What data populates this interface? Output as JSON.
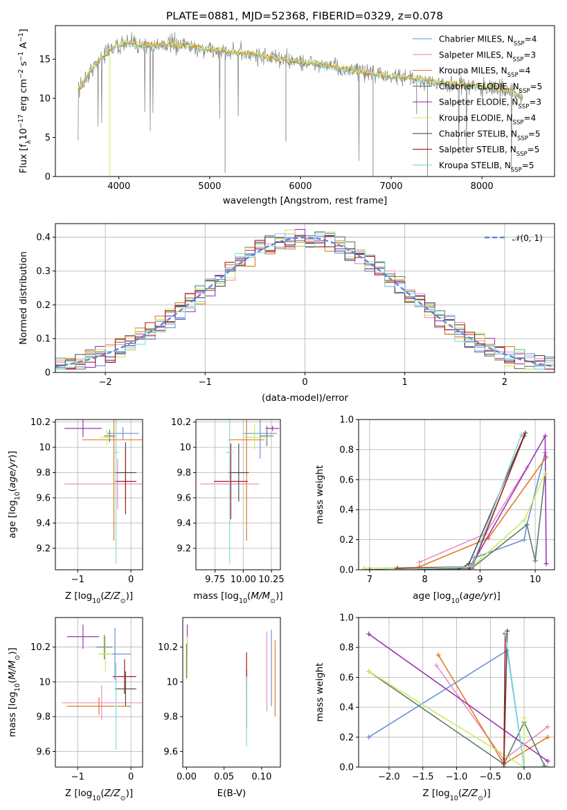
{
  "title": "PLATE=0881, MJD=52368, FIBERID=0329, z=0.078",
  "colors": [
    "#6a8fd8",
    "#e78fc4",
    "#e07a22",
    "#5a7f68",
    "#9b35b5",
    "#cfe860",
    "#4e4e4e",
    "#a51b1b",
    "#82dada"
  ],
  "chart_data": [
    {
      "type": "line",
      "name": "spectrum",
      "xlabel": "wavelength [Angstrom, rest frame]",
      "ylabel": "Flux [f_λ10^-17 erg cm^-2 s^-1 A^-1]",
      "xlim": [
        3300,
        8800
      ],
      "ylim": [
        0,
        19.3
      ],
      "xticks": [
        4000,
        5000,
        6000,
        7000,
        8000
      ],
      "yticks": [
        0,
        5,
        10,
        15
      ],
      "grid": false,
      "legend_position": "top-right",
      "legend": [
        {
          "name": "Chabrier MILES, N",
          "sub": "SSP",
          "tail": "=4"
        },
        {
          "name": "Salpeter MILES, N",
          "sub": "SSP",
          "tail": "=3"
        },
        {
          "name": "Kroupa MILES, N",
          "sub": "SSP",
          "tail": "=4"
        },
        {
          "name": "Chabrier ELODIE, N",
          "sub": "SSP",
          "tail": "=5"
        },
        {
          "name": "Salpeter ELODIE, N",
          "sub": "SSP",
          "tail": "=3"
        },
        {
          "name": "Kroupa ELODIE, N",
          "sub": "SSP",
          "tail": "=4"
        },
        {
          "name": "Chabrier STELIB, N",
          "sub": "SSP",
          "tail": "=5"
        },
        {
          "name": "Salpeter STELIB, N",
          "sub": "SSP",
          "tail": "=5"
        },
        {
          "name": "Kroupa STELIB, N",
          "sub": "SSP",
          "tail": "=5"
        }
      ],
      "continuum": [
        [
          3550,
          11.0
        ],
        [
          3650,
          12.8
        ],
        [
          3800,
          15.2
        ],
        [
          3950,
          16.6
        ],
        [
          4100,
          17.0
        ],
        [
          4300,
          16.7
        ],
        [
          4500,
          16.9
        ],
        [
          4700,
          16.8
        ],
        [
          4900,
          16.4
        ],
        [
          5100,
          16.1
        ],
        [
          5300,
          15.9
        ],
        [
          5500,
          15.5
        ],
        [
          5700,
          15.2
        ],
        [
          5900,
          14.8
        ],
        [
          6100,
          14.5
        ],
        [
          6300,
          14.1
        ],
        [
          6500,
          13.7
        ],
        [
          6700,
          13.3
        ],
        [
          6900,
          12.9
        ],
        [
          7100,
          12.7
        ],
        [
          7300,
          12.4
        ],
        [
          7500,
          12.1
        ],
        [
          7700,
          11.8
        ],
        [
          7900,
          11.6
        ],
        [
          8100,
          11.3
        ],
        [
          8300,
          11.0
        ],
        [
          8450,
          10.0
        ]
      ]
    },
    {
      "type": "bar",
      "name": "residual-histogram",
      "xlabel": "(data-model)/error",
      "ylabel": "Normed distribution",
      "xlim": [
        -2.5,
        2.5
      ],
      "ylim": [
        0,
        0.44
      ],
      "xticks": [
        -2,
        -1,
        0,
        1,
        2
      ],
      "yticks": [
        0.0,
        0.1,
        0.2,
        0.3,
        0.4
      ],
      "grid": true,
      "legend_position": "top-right",
      "legend": "𝒩(0, 1)",
      "bin_width": 0.1
    },
    {
      "type": "scatter",
      "name": "age-vs-metallicity",
      "xlabel": "Z [log10(Z/Z☉)]",
      "ylabel": "age [log10(age/yr)]",
      "xlim": [
        -1.42,
        0.22
      ],
      "ylim": [
        9.03,
        10.22
      ],
      "xticks": [
        -1,
        0
      ],
      "yticks": [
        9.2,
        9.4,
        9.6,
        9.8,
        10.0,
        10.2
      ],
      "grid": true,
      "points": [
        {
          "x": -0.15,
          "xerr": 0.3,
          "y": 10.11,
          "yerr": 0.05
        },
        {
          "x": -0.25,
          "xerr": 1.0,
          "y": 9.71,
          "yerr": 0.2
        },
        {
          "x": -0.32,
          "xerr": 0.6,
          "y": 10.06,
          "yerr": 0.8
        },
        {
          "x": -0.4,
          "xerr": 0.1,
          "y": 10.09,
          "yerr": 0.05
        },
        {
          "x": -0.9,
          "xerr": 0.35,
          "y": 10.15,
          "yerr": 0.07
        },
        {
          "x": -0.45,
          "xerr": 0.12,
          "y": 10.08,
          "yerr": 0.06
        },
        {
          "x": -0.1,
          "xerr": 0.2,
          "y": 9.8,
          "yerr": 0.24
        },
        {
          "x": -0.1,
          "xerr": 0.2,
          "y": 9.73,
          "yerr": 0.26
        },
        {
          "x": -0.28,
          "xerr": 0.05,
          "y": 9.96,
          "yerr": 0.88
        }
      ]
    },
    {
      "type": "scatter",
      "name": "age-vs-mass",
      "xlabel": "mass [log10(M/M☉)]",
      "ylabel": "",
      "xlim": [
        9.58,
        10.33
      ],
      "ylim": [
        9.03,
        10.22
      ],
      "xticks": [
        9.75,
        10.0,
        10.25
      ],
      "xticklabels": [
        "9.75",
        "10.00",
        "10.25"
      ],
      "yticks": [
        9.2,
        9.4,
        9.6,
        9.8,
        10.0,
        10.2
      ],
      "grid": true,
      "points": [
        {
          "x": 10.15,
          "xerr": 0.15,
          "y": 10.11,
          "yerr": 0.2
        },
        {
          "x": 9.88,
          "xerr": 0.26,
          "y": 9.71,
          "yerr": 0.12
        },
        {
          "x": 10.03,
          "xerr": 0.16,
          "y": 10.06,
          "yerr": 0.8
        },
        {
          "x": 10.21,
          "xerr": 0.06,
          "y": 10.09,
          "yerr": 0.08
        },
        {
          "x": 10.26,
          "xerr": 0.06,
          "y": 10.15,
          "yerr": 0.02
        },
        {
          "x": 10.1,
          "xerr": 0.1,
          "y": 10.08,
          "yerr": 0.1
        },
        {
          "x": 9.96,
          "xerr": 0.09,
          "y": 9.8,
          "yerr": 0.23
        },
        {
          "x": 9.89,
          "xerr": 0.15,
          "y": 9.73,
          "yerr": 0.3
        },
        {
          "x": 9.88,
          "xerr": 0.03,
          "y": 9.96,
          "yerr": 0.88
        }
      ]
    },
    {
      "type": "line",
      "name": "mass-weight-vs-age",
      "xlabel": "age [log10(age/yr)]",
      "ylabel": "mass weight",
      "xlim": [
        6.8,
        10.35
      ],
      "ylim": [
        0.0,
        1.0
      ],
      "xticks": [
        7,
        8,
        9,
        10
      ],
      "yticks": [
        0.0,
        0.2,
        0.4,
        0.6,
        0.8,
        1.0
      ],
      "grid": true,
      "series": [
        {
          "x": [
            8.8,
            8.9,
            9.8,
            9.85,
            10.18
          ],
          "y": [
            0.0,
            0.08,
            0.2,
            0.3,
            0.78
          ]
        },
        {
          "x": [
            7.9,
            9.1,
            9.85
          ],
          "y": [
            0.05,
            0.24,
            0.68
          ]
        },
        {
          "x": [
            7.9,
            9.15,
            10.2
          ],
          "y": [
            0.02,
            0.21,
            0.75
          ]
        },
        {
          "x": [
            6.9,
            8.85,
            9.85,
            10.0,
            10.18
          ],
          "y": [
            0.0,
            0.01,
            0.3,
            0.06,
            0.64
          ]
        },
        {
          "x": [
            7.3,
            8.8,
            10.18,
            10.2
          ],
          "y": [
            0.0,
            0.0,
            0.89,
            0.04
          ]
        },
        {
          "x": [
            6.9,
            8.85,
            9.8,
            10.18
          ],
          "y": [
            0.01,
            0.02,
            0.33,
            0.64
          ]
        },
        {
          "x": [
            7.0,
            8.6,
            8.8,
            9.82
          ],
          "y": [
            0.0,
            0.0,
            0.04,
            0.91
          ]
        },
        {
          "x": [
            7.5,
            8.8,
            8.85,
            9.8
          ],
          "y": [
            0.01,
            0.02,
            0.01,
            0.89
          ]
        },
        {
          "x": [
            7.3,
            8.85,
            9.75
          ],
          "y": [
            0.0,
            0.02,
            0.9
          ]
        }
      ]
    },
    {
      "type": "scatter",
      "name": "mass-vs-metallicity",
      "xlabel": "Z [log10(Z/Z☉)]",
      "ylabel": "mass [log10(M/M☉)]",
      "xlim": [
        -1.42,
        0.22
      ],
      "ylim": [
        9.51,
        10.37
      ],
      "xticks": [
        -1,
        0
      ],
      "yticks": [
        9.6,
        9.8,
        10.0,
        10.2
      ],
      "grid": true,
      "points": [
        {
          "x": -0.3,
          "xerr": 0.3,
          "y": 10.16,
          "yerr": 0.15
        },
        {
          "x": -0.55,
          "xerr": 0.75,
          "y": 9.88,
          "yerr": 0.1
        },
        {
          "x": -0.6,
          "xerr": 0.6,
          "y": 9.86,
          "yerr": 0.05
        },
        {
          "x": -0.5,
          "xerr": 0.15,
          "y": 10.2,
          "yerr": 0.07
        },
        {
          "x": -0.9,
          "xerr": 0.3,
          "y": 10.26,
          "yerr": 0.07
        },
        {
          "x": -0.48,
          "xerr": 0.13,
          "y": 10.16,
          "yerr": 0.1
        },
        {
          "x": -0.1,
          "xerr": 0.2,
          "y": 9.96,
          "yerr": 0.1
        },
        {
          "x": -0.12,
          "xerr": 0.22,
          "y": 10.03,
          "yerr": 0.1
        },
        {
          "x": -0.28,
          "xerr": 0.03,
          "y": 9.86,
          "yerr": 0.25
        }
      ]
    },
    {
      "type": "scatter",
      "name": "mass-vs-reddening",
      "xlabel": "E(B-V)",
      "ylabel": "",
      "xlim": [
        -0.005,
        0.125
      ],
      "ylim": [
        9.51,
        10.37
      ],
      "xticks": [
        0.0,
        0.05,
        0.1
      ],
      "xticklabels": [
        "0.00",
        "0.05",
        "0.10"
      ],
      "yticks": [
        9.6,
        9.8,
        10.0,
        10.2
      ],
      "grid": false,
      "points": [
        {
          "x": 0.113,
          "y": 10.08,
          "yerr": 0.22
        },
        {
          "x": 0.107,
          "y": 10.06,
          "yerr": 0.23
        },
        {
          "x": 0.118,
          "y": 10.02,
          "yerr": 0.22
        },
        {
          "x": 0.0,
          "y": 10.12,
          "yerr": 0.1
        },
        {
          "x": 0.001,
          "y": 10.24,
          "yerr": 0.09
        },
        {
          "x": 0.001,
          "y": 10.14,
          "yerr": 0.12
        },
        {
          "x": 0.08,
          "y": 9.9,
          "yerr": 0.17
        },
        {
          "x": 0.08,
          "y": 10.05,
          "yerr": 0.12
        },
        {
          "x": 0.08,
          "y": 9.83,
          "yerr": 0.2
        }
      ]
    },
    {
      "type": "line",
      "name": "mass-weight-vs-metallicity",
      "xlabel": "Z [log10(Z/Z☉)]",
      "ylabel": "mass weight",
      "xlim": [
        -2.45,
        0.45
      ],
      "ylim": [
        0.0,
        1.0
      ],
      "xticks": [
        -2.0,
        -1.5,
        -1.0,
        -0.5,
        0.0
      ],
      "xticklabels": [
        "−2.0",
        "−1.5",
        "−1.0",
        "−0.5",
        "0.0"
      ],
      "yticks": [
        0.0,
        0.2,
        0.4,
        0.6,
        0.8,
        1.0
      ],
      "grid": true,
      "series": [
        {
          "x": [
            -2.3,
            -0.25,
            0.0,
            0.35
          ],
          "y": [
            0.2,
            0.78,
            0.0,
            0.0
          ]
        },
        {
          "x": [
            -1.3,
            -0.3,
            0.35
          ],
          "y": [
            0.68,
            0.05,
            0.27
          ]
        },
        {
          "x": [
            -1.27,
            -0.3,
            0.35
          ],
          "y": [
            0.75,
            0.02,
            0.2
          ]
        },
        {
          "x": [
            -2.3,
            -0.3,
            0.0,
            0.3
          ],
          "y": [
            0.64,
            0.02,
            0.3,
            0.01
          ]
        },
        {
          "x": [
            -2.3,
            0.35
          ],
          "y": [
            0.89,
            0.04
          ]
        },
        {
          "x": [
            -2.3,
            0.0,
            0.0
          ],
          "y": [
            0.64,
            0.0,
            0.33
          ]
        },
        {
          "x": [
            -0.25,
            -0.3
          ],
          "y": [
            0.91,
            0.0
          ]
        },
        {
          "x": [
            -0.28,
            -0.3
          ],
          "y": [
            0.89,
            0.0
          ]
        },
        {
          "x": [
            -0.28,
            0.0,
            0.35
          ],
          "y": [
            0.9,
            0.0,
            0.0
          ]
        }
      ]
    }
  ]
}
